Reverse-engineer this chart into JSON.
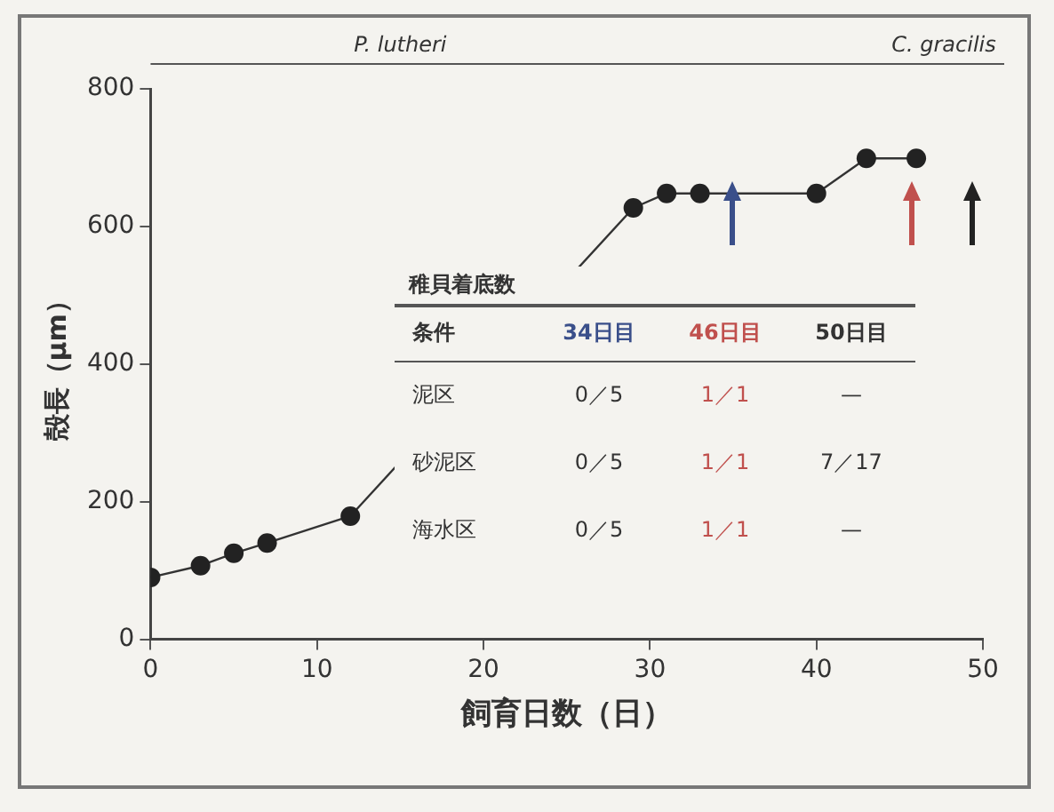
{
  "chart_data": {
    "type": "line",
    "xlabel": "飼育日数（日）",
    "ylabel": "殻長（μm）",
    "x": [
      0,
      3,
      5,
      7,
      12,
      29,
      31,
      33,
      40,
      43,
      46
    ],
    "values": [
      90,
      107,
      125,
      140,
      179,
      627,
      648,
      648,
      648,
      699,
      699
    ],
    "color": "#333333",
    "marker": "circle",
    "line_style": "solid",
    "xlim": [
      0,
      50
    ],
    "xticks": [
      0,
      10,
      20,
      30,
      40,
      50
    ],
    "ylim": [
      0,
      800
    ],
    "yticks": [
      0,
      200,
      400,
      600,
      800
    ],
    "grid": false,
    "legend": false,
    "annotations": [
      "P. lutheri",
      "C. gracilis",
      "稚貝着底数",
      "条件",
      "34日目",
      "46日目",
      "50日目",
      "泥区",
      "0／5",
      "1／1",
      "—",
      "砂泥区",
      "0／5",
      "1／1",
      "7／17",
      "海水区",
      "0／5",
      "1／1",
      "—"
    ]
  }
}
